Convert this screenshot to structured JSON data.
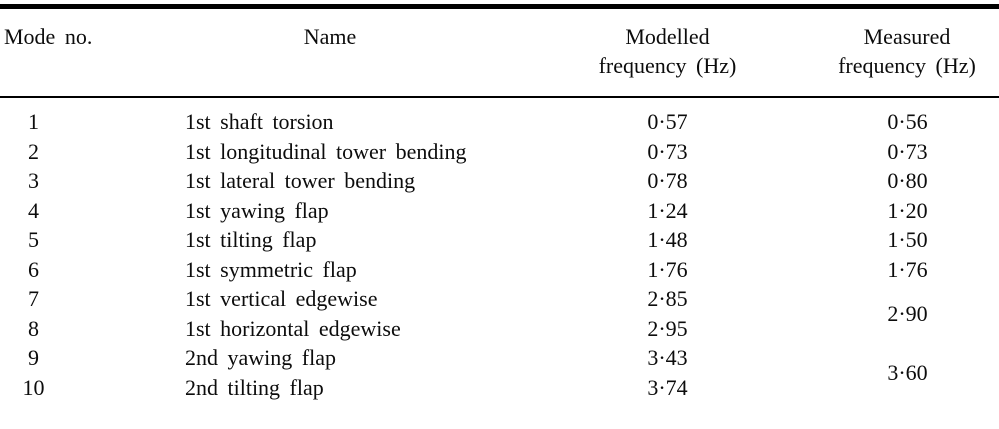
{
  "table": {
    "columns": {
      "mode": "Mode no.",
      "name": "Name",
      "modelled_line1": "Modelled",
      "modelled_line2": "frequency (Hz)",
      "measured_line1": "Measured",
      "measured_line2": "frequency (Hz)"
    },
    "rows": [
      {
        "mode": "1",
        "name": "1st shaft torsion",
        "modelled": "0·57"
      },
      {
        "mode": "2",
        "name": "1st longitudinal tower bending",
        "modelled": "0·73"
      },
      {
        "mode": "3",
        "name": "1st lateral tower bending",
        "modelled": "0·78"
      },
      {
        "mode": "4",
        "name": "1st yawing flap",
        "modelled": "1·24"
      },
      {
        "mode": "5",
        "name": "1st tilting flap",
        "modelled": "1·48"
      },
      {
        "mode": "6",
        "name": "1st symmetric flap",
        "modelled": "1·76"
      },
      {
        "mode": "7",
        "name": "1st vertical edgewise",
        "modelled": "2·85"
      },
      {
        "mode": "8",
        "name": "1st horizontal edgewise",
        "modelled": "2·95"
      },
      {
        "mode": "9",
        "name": "2nd yawing flap",
        "modelled": "3·43"
      },
      {
        "mode": "10",
        "name": "2nd tilting flap",
        "modelled": "3·74"
      }
    ],
    "measured": [
      {
        "value": "0·56",
        "span": 1
      },
      {
        "value": "0·73",
        "span": 1
      },
      {
        "value": "0·80",
        "span": 1
      },
      {
        "value": "1·20",
        "span": 1
      },
      {
        "value": "1·50",
        "span": 1
      },
      {
        "value": "1·76",
        "span": 1
      },
      {
        "value": "2·90",
        "span": 2
      },
      {
        "value": "3·60",
        "span": 2
      }
    ]
  }
}
